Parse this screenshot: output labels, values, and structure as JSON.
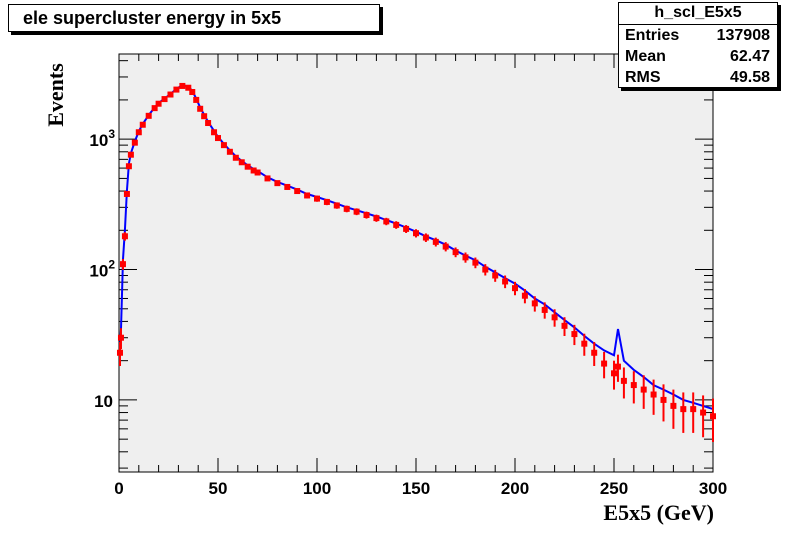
{
  "chart_data": {
    "type": "line",
    "title": "ele supercluster energy in 5x5",
    "xlabel": "E5x5 (GeV)",
    "ylabel": "Events",
    "xlim": [
      0,
      300
    ],
    "ylim": [
      2.8,
      4500
    ],
    "yscale": "log",
    "grid": false,
    "legend": "none",
    "x_ticks": [
      {
        "value": 0,
        "label": "0"
      },
      {
        "value": 50,
        "label": "50"
      },
      {
        "value": 100,
        "label": "100"
      },
      {
        "value": 150,
        "label": "150"
      },
      {
        "value": 200,
        "label": "200"
      },
      {
        "value": 250,
        "label": "250"
      },
      {
        "value": 300,
        "label": "300"
      }
    ],
    "y_ticks": [
      {
        "value": 10,
        "label": "10"
      },
      {
        "value": 100,
        "label": "10",
        "exp": "2"
      },
      {
        "value": 1000,
        "label": "10",
        "exp": "3"
      }
    ],
    "stats": {
      "name": "h_scl_E5x5",
      "rows": [
        {
          "label": "Entries",
          "value": "137908"
        },
        {
          "label": "Mean",
          "value": "62.47"
        },
        {
          "label": "RMS",
          "value": "49.58"
        }
      ]
    },
    "colors": {
      "frame_bg": "#efefef",
      "series_reference": "#0000ff",
      "series_new": "#ff0000"
    },
    "series": [
      {
        "color": "#0000ff",
        "style": "line",
        "x": [
          0.5,
          1,
          2,
          3,
          4,
          5,
          6,
          8,
          10,
          12,
          15,
          18,
          20,
          23,
          26,
          29,
          32,
          35,
          37,
          39,
          41,
          43,
          45,
          48,
          50,
          53,
          56,
          59,
          62,
          65,
          68,
          70,
          75,
          80,
          85,
          90,
          95,
          100,
          105,
          110,
          115,
          120,
          125,
          130,
          135,
          140,
          145,
          150,
          155,
          160,
          165,
          170,
          175,
          180,
          185,
          190,
          195,
          200,
          205,
          210,
          215,
          220,
          225,
          230,
          235,
          240,
          245,
          250,
          252,
          255,
          260,
          265,
          270,
          275,
          280,
          285,
          290,
          295,
          300
        ],
        "y": [
          25,
          35,
          120,
          200,
          400,
          650,
          780,
          960,
          1150,
          1310,
          1530,
          1750,
          1890,
          2050,
          2220,
          2430,
          2600,
          2530,
          2350,
          2050,
          1750,
          1540,
          1360,
          1160,
          1040,
          920,
          820,
          740,
          680,
          630,
          590,
          570,
          510,
          470,
          440,
          410,
          380,
          360,
          340,
          320,
          300,
          285,
          270,
          255,
          240,
          225,
          210,
          195,
          180,
          168,
          155,
          140,
          128,
          118,
          105,
          95,
          86,
          78,
          69,
          60,
          54,
          47,
          41,
          36,
          31,
          27,
          24,
          22,
          35,
          20,
          17,
          15,
          13,
          12,
          11,
          10,
          9.5,
          9,
          8.5
        ]
      },
      {
        "color": "#ff0000",
        "style": "markers-with-error-bars",
        "x": [
          0.5,
          1,
          2,
          3,
          4,
          5,
          6,
          8,
          10,
          12,
          15,
          18,
          20,
          23,
          26,
          29,
          32,
          35,
          37,
          39,
          41,
          43,
          45,
          48,
          50,
          53,
          56,
          59,
          62,
          65,
          68,
          70,
          75,
          80,
          85,
          90,
          95,
          100,
          105,
          110,
          115,
          120,
          125,
          130,
          135,
          140,
          145,
          150,
          155,
          160,
          165,
          170,
          175,
          180,
          185,
          190,
          195,
          200,
          205,
          210,
          215,
          220,
          225,
          230,
          235,
          240,
          245,
          250,
          252,
          255,
          260,
          265,
          270,
          275,
          280,
          285,
          290,
          295,
          300
        ],
        "y": [
          23,
          30,
          110,
          180,
          380,
          620,
          760,
          940,
          1130,
          1290,
          1510,
          1730,
          1870,
          2030,
          2200,
          2400,
          2560,
          2480,
          2300,
          2000,
          1710,
          1500,
          1330,
          1130,
          1020,
          900,
          800,
          720,
          665,
          615,
          575,
          555,
          500,
          460,
          430,
          400,
          370,
          350,
          330,
          310,
          292,
          278,
          262,
          248,
          234,
          220,
          205,
          190,
          176,
          163,
          150,
          136,
          124,
          113,
          100,
          90,
          81,
          72,
          63,
          55,
          49,
          43,
          37,
          32,
          27,
          23,
          19,
          16,
          18,
          14,
          13,
          12,
          11,
          10,
          9,
          8.5,
          8.5,
          8,
          7.5
        ]
      }
    ]
  }
}
